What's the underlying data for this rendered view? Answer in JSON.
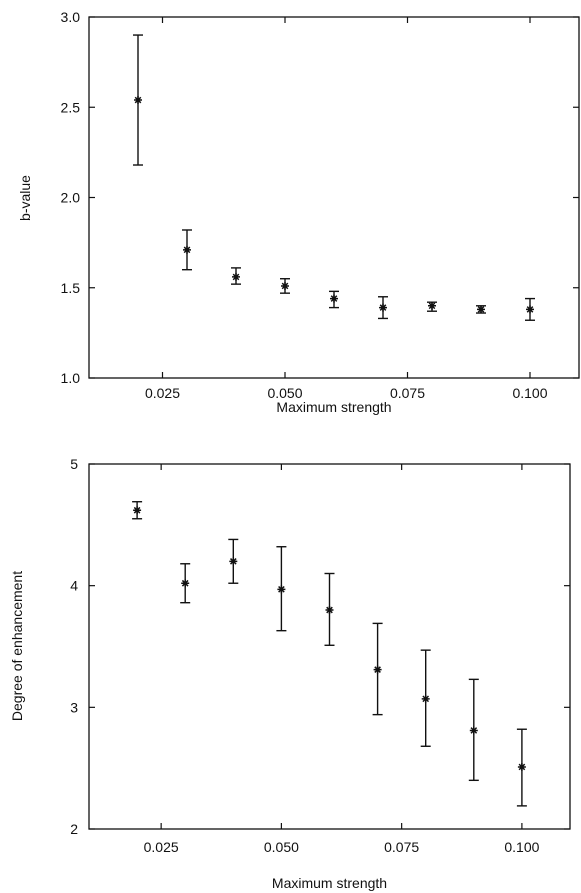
{
  "chart_data": [
    {
      "type": "scatter",
      "title": "",
      "xlabel": "Maximum strength",
      "ylabel": "b-value",
      "xlim": [
        0.01,
        0.11
      ],
      "ylim": [
        1.0,
        3.0
      ],
      "xticks": [
        0.025,
        0.05,
        0.075,
        0.1
      ],
      "xtick_labels": [
        "0.025",
        "0.050",
        "0.075",
        "0.100"
      ],
      "yticks": [
        1.0,
        1.5,
        2.0,
        2.5,
        3.0
      ],
      "ytick_labels": [
        "1.0",
        "1.5",
        "2.0",
        "2.5",
        "3.0"
      ],
      "grid": false,
      "legend": "none",
      "marker": "asterisk",
      "error_bars": true,
      "series": [
        {
          "x": [
            0.02,
            0.03,
            0.04,
            0.05,
            0.06,
            0.07,
            0.08,
            0.09,
            0.1
          ],
          "y": [
            2.54,
            1.71,
            1.56,
            1.51,
            1.44,
            1.39,
            1.4,
            1.38,
            1.38
          ],
          "y_low": [
            2.18,
            1.6,
            1.52,
            1.47,
            1.39,
            1.33,
            1.37,
            1.36,
            1.32
          ],
          "y_high": [
            2.9,
            1.82,
            1.61,
            1.55,
            1.48,
            1.45,
            1.42,
            1.4,
            1.44
          ]
        }
      ]
    },
    {
      "type": "scatter",
      "title": "",
      "xlabel": "Maximum strength",
      "ylabel": "Degree of enhancement",
      "xlim": [
        0.01,
        0.11
      ],
      "ylim": [
        2,
        5
      ],
      "xticks": [
        0.025,
        0.05,
        0.075,
        0.1
      ],
      "xtick_labels": [
        "0.025",
        "0.050",
        "0.075",
        "0.100"
      ],
      "yticks": [
        2,
        3,
        4,
        5
      ],
      "ytick_labels": [
        "2",
        "3",
        "4",
        "5"
      ],
      "grid": false,
      "legend": "none",
      "marker": "asterisk",
      "error_bars": true,
      "series": [
        {
          "x": [
            0.02,
            0.03,
            0.04,
            0.05,
            0.06,
            0.07,
            0.08,
            0.09,
            0.1
          ],
          "y": [
            4.62,
            4.02,
            4.2,
            3.97,
            3.8,
            3.31,
            3.07,
            2.81,
            2.51
          ],
          "y_low": [
            4.55,
            3.86,
            4.02,
            3.63,
            3.51,
            2.94,
            2.68,
            2.4,
            2.19
          ],
          "y_high": [
            4.69,
            4.18,
            4.38,
            4.32,
            4.1,
            3.69,
            3.47,
            3.23,
            2.82
          ]
        }
      ]
    }
  ]
}
